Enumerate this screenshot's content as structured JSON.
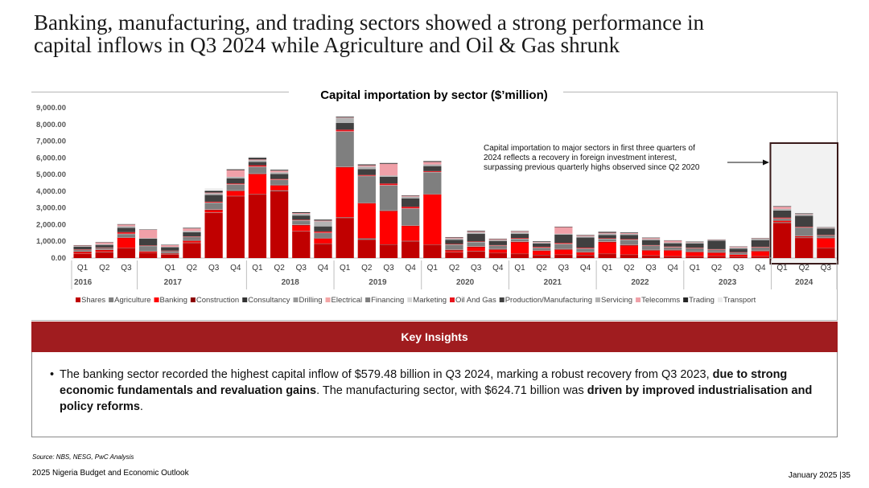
{
  "page": {
    "title_line1": "Banking, manufacturing, and trading sectors showed a strong performance in",
    "title_line2": "capital inflows in Q3 2024 while Agriculture and Oil & Gas shrunk"
  },
  "chart_data": {
    "type": "bar",
    "stacked": true,
    "title": "Capital importation by sector ($’million)",
    "xlabel": "",
    "ylabel": "",
    "ylim": [
      0,
      9000
    ],
    "y_ticks": [
      "0.00",
      "1,000.00",
      "2,000.00",
      "3,000.00",
      "4,000.00",
      "5,000.00",
      "6,000.00",
      "7,000.00",
      "8,000.00",
      "9,000.00"
    ],
    "legend_position": "bottom",
    "years": [
      {
        "label": "2016",
        "quarters": [
          0,
          1,
          2
        ]
      },
      {
        "label": "2017",
        "quarters": [
          4,
          5,
          6,
          7
        ]
      },
      {
        "label": "2018",
        "quarters": [
          8,
          9,
          10,
          11
        ]
      },
      {
        "label": "2019",
        "quarters": [
          12,
          13,
          14,
          15
        ]
      },
      {
        "label": "2020",
        "quarters": [
          16,
          17,
          18,
          19
        ]
      },
      {
        "label": "2021",
        "quarters": [
          20,
          21,
          22,
          23
        ]
      },
      {
        "label": "2022",
        "quarters": [
          24,
          25,
          26,
          27
        ]
      },
      {
        "label": "2023",
        "quarters": [
          28,
          29,
          30,
          31
        ]
      },
      {
        "label": "2024",
        "quarters": [
          32,
          33,
          34
        ]
      }
    ],
    "categories": [
      "Q1",
      "Q2",
      "Q3",
      "Q4",
      "Q1",
      "Q2",
      "Q3",
      "Q4",
      "Q1",
      "Q2",
      "Q3",
      "Q4",
      "Q1",
      "Q2",
      "Q3",
      "Q4",
      "Q1",
      "Q2",
      "Q3",
      "Q4",
      "Q1",
      "Q2",
      "Q3",
      "Q4",
      "Q1",
      "Q2",
      "Q3",
      "Q4",
      "Q1",
      "Q2",
      "Q3",
      "Q4",
      "Q1",
      "Q2",
      "Q3"
    ],
    "series": [
      {
        "name": "Shares",
        "color": "#c00000",
        "values": [
          250,
          350,
          600,
          300,
          200,
          900,
          2700,
          3700,
          3800,
          4000,
          1600,
          850,
          2400,
          1100,
          800,
          1000,
          800,
          350,
          400,
          300,
          250,
          180,
          200,
          180,
          250,
          200,
          150,
          100,
          100,
          100,
          90,
          100,
          2100,
          1200,
          600
        ]
      },
      {
        "name": "Agriculture",
        "color": "#808080",
        "values": [
          20,
          30,
          10,
          10,
          20,
          30,
          30,
          20,
          30,
          50,
          20,
          20,
          40,
          80,
          20,
          30,
          10,
          20,
          20,
          10,
          10,
          10,
          10,
          10,
          10,
          10,
          10,
          10,
          10,
          20,
          10,
          10,
          50,
          40,
          5
        ]
      },
      {
        "name": "Banking",
        "color": "#ff0000",
        "values": [
          100,
          100,
          600,
          80,
          50,
          100,
          150,
          300,
          1200,
          300,
          350,
          300,
          3000,
          2100,
          2000,
          900,
          3000,
          100,
          250,
          200,
          700,
          250,
          300,
          150,
          700,
          550,
          300,
          350,
          250,
          200,
          100,
          300,
          80,
          60,
          580
        ]
      },
      {
        "name": "Construction",
        "color": "#8b0000",
        "values": [
          10,
          10,
          10,
          10,
          10,
          10,
          10,
          10,
          10,
          10,
          10,
          10,
          10,
          10,
          10,
          10,
          10,
          10,
          10,
          10,
          10,
          10,
          10,
          10,
          10,
          10,
          10,
          10,
          10,
          10,
          10,
          10,
          10,
          10,
          10
        ]
      },
      {
        "name": "Consultancy",
        "color": "#333333",
        "values": [
          10,
          10,
          10,
          10,
          10,
          10,
          10,
          10,
          10,
          10,
          10,
          10,
          10,
          10,
          10,
          10,
          10,
          10,
          10,
          10,
          10,
          10,
          10,
          10,
          10,
          10,
          10,
          10,
          10,
          10,
          10,
          10,
          10,
          10,
          10
        ]
      },
      {
        "name": "Drilling",
        "color": "#999999",
        "values": [
          10,
          10,
          10,
          10,
          10,
          10,
          10,
          10,
          10,
          10,
          10,
          10,
          10,
          10,
          10,
          10,
          10,
          10,
          10,
          10,
          10,
          10,
          10,
          10,
          10,
          10,
          10,
          10,
          10,
          10,
          10,
          10,
          10,
          10,
          10
        ]
      },
      {
        "name": "Electrical",
        "color": "#f4a6a6",
        "values": [
          5,
          5,
          5,
          5,
          5,
          5,
          5,
          5,
          5,
          5,
          5,
          5,
          5,
          5,
          5,
          5,
          5,
          5,
          5,
          5,
          5,
          5,
          5,
          5,
          5,
          5,
          5,
          5,
          5,
          5,
          5,
          5,
          5,
          5,
          5
        ]
      },
      {
        "name": "Financing",
        "color": "#7f7f7f",
        "values": [
          100,
          100,
          200,
          300,
          120,
          200,
          400,
          350,
          400,
          300,
          250,
          300,
          2100,
          1600,
          1500,
          1000,
          1300,
          300,
          250,
          200,
          150,
          150,
          300,
          200,
          150,
          300,
          250,
          150,
          200,
          150,
          100,
          200,
          100,
          500,
          150
        ]
      },
      {
        "name": "Marketing",
        "color": "#d9d9d9",
        "values": [
          10,
          10,
          10,
          10,
          10,
          10,
          10,
          10,
          10,
          10,
          10,
          10,
          10,
          10,
          10,
          10,
          10,
          10,
          10,
          10,
          10,
          10,
          10,
          10,
          10,
          10,
          10,
          10,
          10,
          10,
          10,
          10,
          10,
          10,
          10
        ]
      },
      {
        "name": "Oil And Gas",
        "color": "#e8141c",
        "values": [
          10,
          10,
          100,
          20,
          10,
          20,
          50,
          50,
          80,
          40,
          30,
          80,
          100,
          50,
          100,
          100,
          50,
          30,
          30,
          20,
          40,
          40,
          50,
          40,
          30,
          30,
          20,
          30,
          20,
          20,
          10,
          20,
          50,
          30,
          10
        ]
      },
      {
        "name": "Production/Manufacturing",
        "color": "#404040",
        "values": [
          150,
          150,
          250,
          400,
          200,
          250,
          400,
          300,
          200,
          300,
          250,
          300,
          400,
          350,
          400,
          500,
          300,
          250,
          450,
          250,
          250,
          200,
          500,
          600,
          200,
          250,
          300,
          200,
          250,
          500,
          200,
          400,
          420,
          650,
          380
        ]
      },
      {
        "name": "Servicing",
        "color": "#b3b3b3",
        "values": [
          40,
          50,
          100,
          40,
          30,
          80,
          100,
          100,
          100,
          100,
          100,
          300,
          300,
          150,
          80,
          100,
          100,
          80,
          100,
          60,
          100,
          60,
          50,
          80,
          80,
          60,
          60,
          50,
          60,
          40,
          80,
          80,
          100,
          100,
          50
        ]
      },
      {
        "name": "Telecomms",
        "color": "#f0a0a8",
        "values": [
          40,
          100,
          100,
          500,
          100,
          150,
          50,
          400,
          50,
          100,
          50,
          50,
          30,
          80,
          700,
          50,
          150,
          50,
          50,
          50,
          50,
          30,
          400,
          50,
          50,
          50,
          60,
          100,
          20,
          20,
          50,
          20,
          130,
          20,
          20
        ]
      },
      {
        "name": "Trading",
        "color": "#262626",
        "values": [
          20,
          20,
          30,
          20,
          20,
          30,
          100,
          50,
          100,
          50,
          50,
          60,
          50,
          50,
          50,
          40,
          50,
          30,
          40,
          30,
          30,
          40,
          30,
          40,
          60,
          40,
          30,
          30,
          30,
          30,
          20,
          30,
          40,
          40,
          20
        ]
      },
      {
        "name": "Transport",
        "color": "#ececec",
        "values": [
          20,
          30,
          20,
          20,
          20,
          30,
          150,
          20,
          80,
          30,
          20,
          20,
          20,
          30,
          20,
          10,
          20,
          20,
          20,
          20,
          20,
          20,
          20,
          10,
          20,
          20,
          20,
          10,
          20,
          10,
          10,
          10,
          10,
          10,
          10
        ]
      }
    ],
    "annotation": {
      "text": "Capital importation to major sectors in first three quarters of 2024 reflects a recovery in foreign investment interest, surpassing previous quarterly highs observed since Q2 2020",
      "highlight": "2024 quarters"
    }
  },
  "insights": {
    "header": "Key Insights",
    "bullet": "•",
    "part1": "The banking sector recorded the highest capital inflow of $579.48 billion in Q3 2024, marking a robust recovery from Q3 2023, ",
    "part2": "due to strong economic fundamentals and revaluation gains",
    "part3": ". The manufacturing sector, with $624.71 billion was ",
    "part4": "driven by improved industrialisation and  policy reforms",
    "part5": "."
  },
  "footer": {
    "source": "Source: NBS, NESG, PwC Analysis",
    "left": "2025 Nigeria Budget and Economic Outlook",
    "right": "January 2025 |35"
  }
}
